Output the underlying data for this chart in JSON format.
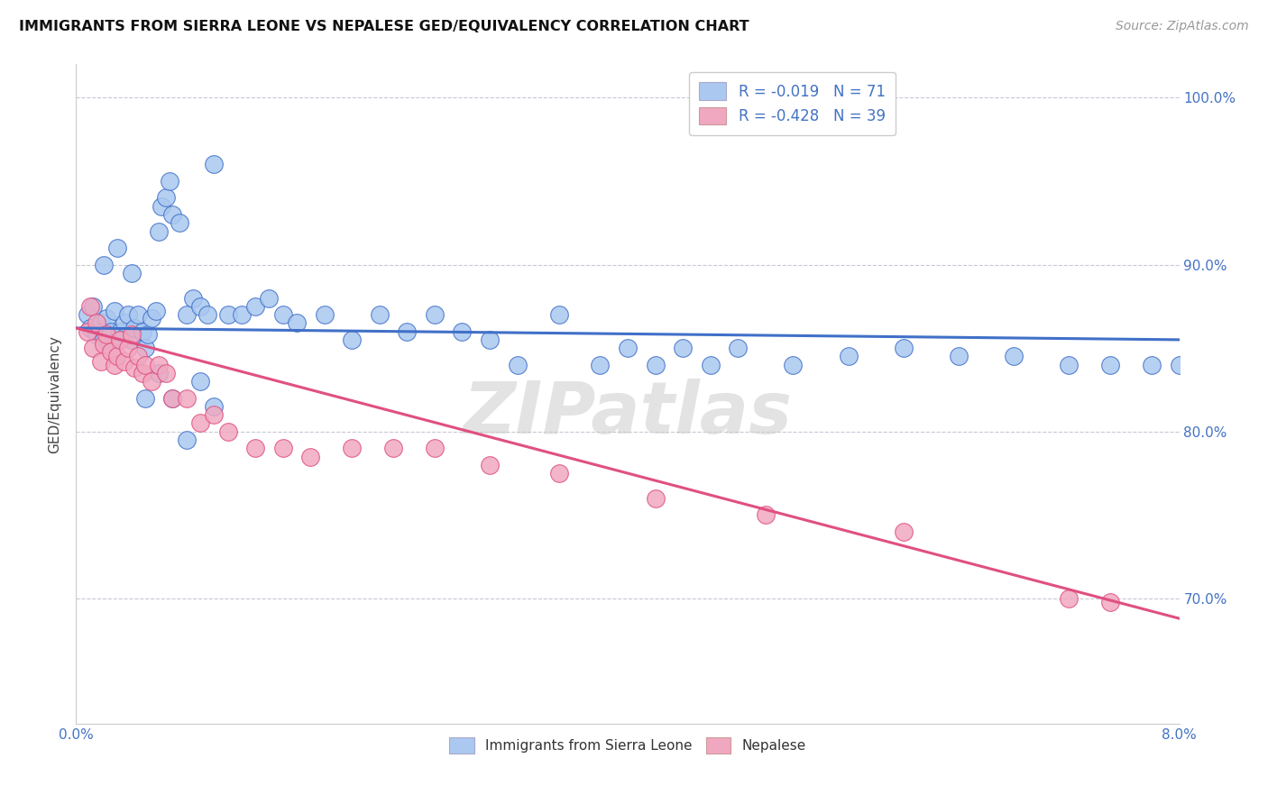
{
  "title": "IMMIGRANTS FROM SIERRA LEONE VS NEPALESE GED/EQUIVALENCY CORRELATION CHART",
  "source": "Source: ZipAtlas.com",
  "ylabel": "GED/Equivalency",
  "xlim": [
    0.0,
    0.08
  ],
  "ylim": [
    0.625,
    1.02
  ],
  "ytick_vals": [
    0.7,
    0.8,
    0.9,
    1.0
  ],
  "yticklabels": [
    "70.0%",
    "80.0%",
    "90.0%",
    "100.0%"
  ],
  "xtick_vals": [
    0.0,
    0.04,
    0.08
  ],
  "xticklabels": [
    "0.0%",
    "",
    "8.0%"
  ],
  "watermark": "ZIPatlas",
  "color_sl": "#aac8f0",
  "color_ne": "#f0a8c0",
  "line_color_sl": "#4070c8",
  "line_color_ne": "#e05080",
  "background_color": "#ffffff",
  "grid_color": "#c8c8d8",
  "tick_color": "#4472c4",
  "sl_x": [
    0.0008,
    0.001,
    0.0012,
    0.0015,
    0.0018,
    0.002,
    0.0022,
    0.0025,
    0.0028,
    0.003,
    0.0032,
    0.0035,
    0.0038,
    0.004,
    0.0042,
    0.0045,
    0.0048,
    0.005,
    0.0052,
    0.0055,
    0.0058,
    0.006,
    0.0062,
    0.0065,
    0.0068,
    0.007,
    0.0075,
    0.008,
    0.0085,
    0.009,
    0.0095,
    0.01,
    0.011,
    0.012,
    0.013,
    0.014,
    0.015,
    0.016,
    0.018,
    0.02,
    0.022,
    0.024,
    0.026,
    0.028,
    0.03,
    0.032,
    0.035,
    0.038,
    0.04,
    0.042,
    0.044,
    0.046,
    0.048,
    0.052,
    0.056,
    0.06,
    0.064,
    0.068,
    0.072,
    0.075,
    0.078,
    0.08,
    0.002,
    0.003,
    0.004,
    0.005,
    0.006,
    0.007,
    0.008,
    0.009,
    0.01
  ],
  "sl_y": [
    0.87,
    0.862,
    0.875,
    0.858,
    0.865,
    0.855,
    0.868,
    0.86,
    0.872,
    0.855,
    0.86,
    0.865,
    0.87,
    0.855,
    0.862,
    0.87,
    0.86,
    0.85,
    0.858,
    0.868,
    0.872,
    0.92,
    0.935,
    0.94,
    0.95,
    0.93,
    0.925,
    0.87,
    0.88,
    0.875,
    0.87,
    0.96,
    0.87,
    0.87,
    0.875,
    0.88,
    0.87,
    0.865,
    0.87,
    0.855,
    0.87,
    0.86,
    0.87,
    0.86,
    0.855,
    0.84,
    0.87,
    0.84,
    0.85,
    0.84,
    0.85,
    0.84,
    0.85,
    0.84,
    0.845,
    0.85,
    0.845,
    0.845,
    0.84,
    0.84,
    0.84,
    0.84,
    0.9,
    0.91,
    0.895,
    0.82,
    0.835,
    0.82,
    0.795,
    0.83,
    0.815
  ],
  "ne_x": [
    0.0008,
    0.001,
    0.0012,
    0.0015,
    0.0018,
    0.002,
    0.0022,
    0.0025,
    0.0028,
    0.003,
    0.0032,
    0.0035,
    0.0038,
    0.004,
    0.0042,
    0.0045,
    0.0048,
    0.005,
    0.0055,
    0.006,
    0.0065,
    0.007,
    0.008,
    0.009,
    0.01,
    0.011,
    0.013,
    0.015,
    0.017,
    0.02,
    0.023,
    0.026,
    0.03,
    0.035,
    0.042,
    0.05,
    0.06,
    0.072,
    0.075
  ],
  "ne_y": [
    0.86,
    0.875,
    0.85,
    0.865,
    0.842,
    0.852,
    0.858,
    0.848,
    0.84,
    0.845,
    0.855,
    0.842,
    0.85,
    0.858,
    0.838,
    0.845,
    0.835,
    0.84,
    0.83,
    0.84,
    0.835,
    0.82,
    0.82,
    0.805,
    0.81,
    0.8,
    0.79,
    0.79,
    0.785,
    0.79,
    0.79,
    0.79,
    0.78,
    0.775,
    0.76,
    0.75,
    0.74,
    0.7,
    0.698
  ],
  "sl_line_x": [
    0.0,
    0.08
  ],
  "sl_line_y": [
    0.862,
    0.855
  ],
  "ne_line_x": [
    0.0,
    0.08
  ],
  "ne_line_y": [
    0.862,
    0.688
  ]
}
